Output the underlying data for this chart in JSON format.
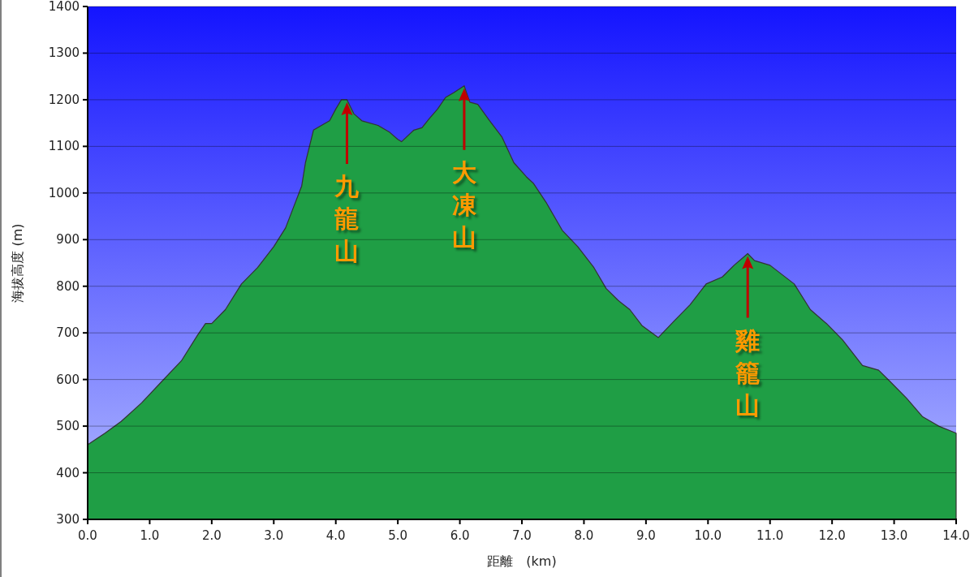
{
  "chart_data": {
    "type": "area",
    "xlabel": "距離　(km)",
    "ylabel": "海拔高度 (m)",
    "x": [
      0,
      0.28,
      0.54,
      0.87,
      1.19,
      1.51,
      1.77,
      1.9,
      2.0,
      2.22,
      2.48,
      2.74,
      3.0,
      3.19,
      3.32,
      3.45,
      3.51,
      3.64,
      3.77,
      3.9,
      4.0,
      4.09,
      4.18,
      4.29,
      4.42,
      4.68,
      4.87,
      5.0,
      5.06,
      5.26,
      5.39,
      5.51,
      5.64,
      5.77,
      5.9,
      6.07,
      6.16,
      6.29,
      6.48,
      6.68,
      6.87,
      7.07,
      7.19,
      7.39,
      7.65,
      7.9,
      8.16,
      8.36,
      8.55,
      8.74,
      8.94,
      9.2,
      9.45,
      9.71,
      9.97,
      10.23,
      10.42,
      10.64,
      10.75,
      11.0,
      11.39,
      11.65,
      11.91,
      12.17,
      12.49,
      12.75,
      12.94,
      13.2,
      13.46,
      13.72,
      14.0
    ],
    "series": [
      {
        "color": "#1f9e45",
        "values": [
          460,
          485,
          510,
          550,
          595,
          640,
          695,
          720,
          720,
          750,
          805,
          840,
          885,
          925,
          970,
          1015,
          1065,
          1135,
          1145,
          1155,
          1180,
          1200,
          1200,
          1170,
          1155,
          1145,
          1130,
          1115,
          1110,
          1135,
          1140,
          1160,
          1180,
          1205,
          1215,
          1230,
          1195,
          1190,
          1155,
          1120,
          1065,
          1035,
          1020,
          980,
          920,
          885,
          840,
          795,
          770,
          750,
          715,
          690,
          725,
          760,
          805,
          820,
          845,
          870,
          855,
          845,
          805,
          750,
          720,
          685,
          630,
          620,
          595,
          560,
          520,
          500,
          485
        ]
      }
    ],
    "xlim": [
      0,
      14
    ],
    "ylim": [
      300,
      1400
    ],
    "xticks": [
      {
        "value": 0,
        "label": "0.0"
      },
      {
        "value": 1,
        "label": "1.0"
      },
      {
        "value": 2,
        "label": "2.0"
      },
      {
        "value": 3,
        "label": "3.0"
      },
      {
        "value": 4,
        "label": "4.0"
      },
      {
        "value": 5,
        "label": "5.0"
      },
      {
        "value": 6,
        "label": "6.0"
      },
      {
        "value": 7,
        "label": "7.0"
      },
      {
        "value": 8,
        "label": "8.0"
      },
      {
        "value": 9,
        "label": "9.0"
      },
      {
        "value": 10,
        "label": "10.0"
      },
      {
        "value": 11,
        "label": "11.0"
      },
      {
        "value": 12,
        "label": "12.0"
      },
      {
        "value": 13,
        "label": "13.0"
      },
      {
        "value": 14,
        "label": "14.0"
      }
    ],
    "yticks": [
      300,
      400,
      500,
      600,
      700,
      800,
      900,
      1000,
      1100,
      1200,
      1300,
      1400
    ],
    "grid": "y",
    "annotations": [
      {
        "text": "九龍山",
        "x": 4.18,
        "y": 1200
      },
      {
        "text": "大凍山",
        "x": 6.07,
        "y": 1230
      },
      {
        "text": "雞籠山",
        "x": 10.64,
        "y": 870
      }
    ]
  }
}
